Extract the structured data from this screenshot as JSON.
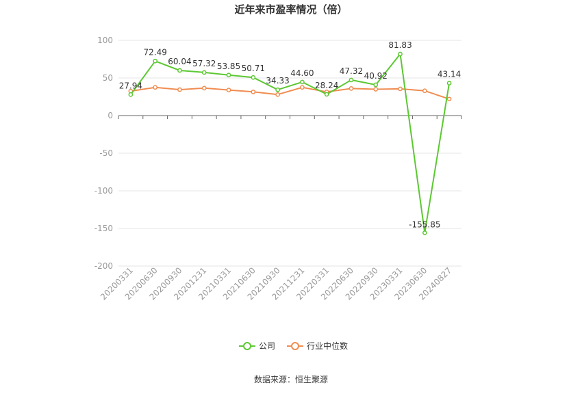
{
  "chart_data": {
    "type": "line",
    "title": "近年来市盈率情况（倍）",
    "categories": [
      "20200331",
      "20200630",
      "20200930",
      "20201231",
      "20210331",
      "20210630",
      "20210930",
      "20211231",
      "20220331",
      "20220630",
      "20220930",
      "20230331",
      "20230630",
      "20240827"
    ],
    "series": [
      {
        "name": "公司",
        "color": "#5cc832",
        "values": [
          27.94,
          72.49,
          60.04,
          57.32,
          53.85,
          50.71,
          34.33,
          44.6,
          28.24,
          47.32,
          40.92,
          81.83,
          -155.85,
          43.14
        ],
        "labels": [
          "27.94",
          "72.49",
          "60.04",
          "57.32",
          "53.85",
          "50.71",
          "34.33",
          "44.60",
          "28.24",
          "47.32",
          "40.92",
          "81.83",
          "-155.85",
          "43.14"
        ]
      },
      {
        "name": "行业中位数",
        "color": "#f08c50",
        "values": [
          32.5,
          37.5,
          34.5,
          36.5,
          34.0,
          31.5,
          28.0,
          37.5,
          31.5,
          36.0,
          35.0,
          35.5,
          33.0,
          22.0
        ]
      }
    ],
    "yticks": [
      "100",
      "50",
      "0",
      "-50",
      "-100",
      "-150",
      "-200"
    ],
    "ylim": [
      -200,
      100
    ],
    "grid": true,
    "legend": "bottom-center",
    "source": "数据来源：恒生聚源"
  }
}
